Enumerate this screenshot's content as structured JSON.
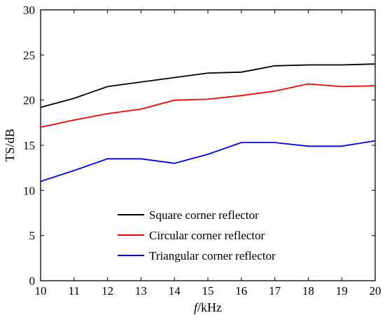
{
  "chart_data": {
    "type": "line",
    "xlabel_italic": "f",
    "xlabel_unit": "/kHz",
    "ylabel": "TS/dB",
    "xlim": [
      10,
      20
    ],
    "ylim": [
      0,
      30
    ],
    "x_ticks": [
      10,
      11,
      12,
      13,
      14,
      15,
      16,
      17,
      18,
      19,
      20
    ],
    "y_ticks": [
      0,
      5,
      10,
      15,
      20,
      25,
      30
    ],
    "grid": false,
    "legend_position": "lower-center",
    "x": [
      10,
      11,
      12,
      13,
      14,
      15,
      16,
      17,
      18,
      19,
      20
    ],
    "series": [
      {
        "name": "Square corner reflector",
        "color": "#000000",
        "values": [
          19.2,
          20.2,
          21.5,
          22.0,
          22.5,
          23.0,
          23.1,
          23.8,
          23.9,
          23.9,
          24.0
        ]
      },
      {
        "name": "Circular corner reflector",
        "color": "#ff0000",
        "values": [
          17.0,
          17.8,
          18.5,
          19.0,
          20.0,
          20.1,
          20.5,
          21.0,
          21.8,
          21.5,
          21.6
        ]
      },
      {
        "name": "Triangular corner reflector",
        "color": "#0000ff",
        "values": [
          11.0,
          12.2,
          13.5,
          13.5,
          13.0,
          14.0,
          15.3,
          15.3,
          14.9,
          14.9,
          15.5
        ]
      }
    ]
  }
}
